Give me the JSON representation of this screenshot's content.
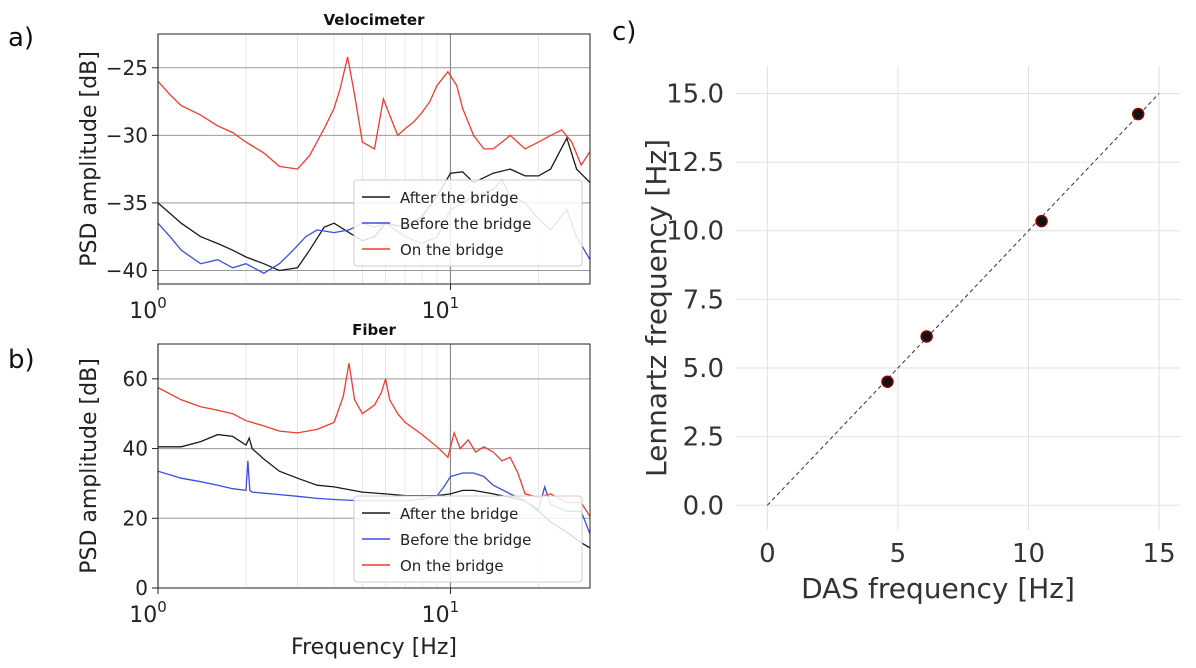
{
  "panel_labels": {
    "a": "a)",
    "b": "b)",
    "c": "c)"
  },
  "colors": {
    "after": "#1a1a1a",
    "before": "#3a4fe0",
    "on": "#f23a2e",
    "grid": "#cccccc",
    "grid_major": "#888888",
    "marker_edge": "#8b0000"
  },
  "chart_data": [
    {
      "type": "line",
      "title": "Velocimeter",
      "xlabel": "",
      "ylabel": "PSD amplitude [dB]",
      "xscale": "log",
      "xlim": [
        1,
        30
      ],
      "ylim": [
        -41,
        -22.5
      ],
      "yticks": [
        "−25",
        "−30",
        "−35",
        "−40"
      ],
      "ytick_values": [
        -25,
        -30,
        -35,
        -40
      ],
      "xticks": [
        {
          "base": "10",
          "exp": "0",
          "value": 1
        },
        {
          "base": "10",
          "exp": "1",
          "value": 10
        }
      ],
      "legend": [
        "After the bridge",
        "Before the bridge",
        "On the bridge"
      ],
      "legend_position": "lower right",
      "series": [
        {
          "name": "After the bridge",
          "x": [
            1,
            1.2,
            1.4,
            1.6,
            1.8,
            2,
            2.3,
            2.6,
            3,
            3.3,
            3.7,
            4,
            4.5,
            5,
            5.5,
            6,
            7,
            8,
            9,
            10,
            11,
            12,
            14,
            16,
            18,
            20,
            22,
            25,
            27,
            30
          ],
          "y": [
            -35,
            -36.5,
            -37.5,
            -38,
            -38.5,
            -39,
            -39.5,
            -40,
            -39.8,
            -38.5,
            -36.8,
            -36.5,
            -37.2,
            -37.8,
            -37.5,
            -36.5,
            -36.8,
            -36,
            -34.5,
            -32.8,
            -32.7,
            -33.5,
            -32.8,
            -32.5,
            -33,
            -33,
            -32.5,
            -30.2,
            -32.5,
            -33.5
          ]
        },
        {
          "name": "Before the bridge",
          "x": [
            1,
            1.1,
            1.2,
            1.4,
            1.6,
            1.8,
            2,
            2.3,
            2.6,
            2.9,
            3.2,
            3.5,
            4,
            4.5,
            5,
            5.5,
            6,
            7,
            8,
            9,
            10,
            11,
            12,
            14,
            15,
            16,
            18,
            20,
            22,
            25,
            27,
            30
          ],
          "y": [
            -36.5,
            -37.5,
            -38.5,
            -39.5,
            -39.2,
            -39.8,
            -39.5,
            -40.2,
            -39.5,
            -38.5,
            -37.5,
            -37,
            -37.2,
            -37,
            -36.5,
            -36.8,
            -36.5,
            -37.5,
            -38,
            -37.5,
            -35.5,
            -35,
            -34.5,
            -34,
            -33.3,
            -34.5,
            -35,
            -36.2,
            -37,
            -35.5,
            -37.5,
            -39.2
          ]
        },
        {
          "name": "On the bridge",
          "x": [
            1,
            1.1,
            1.2,
            1.4,
            1.6,
            1.8,
            2,
            2.3,
            2.6,
            3,
            3.3,
            3.7,
            4,
            4.2,
            4.45,
            4.7,
            5,
            5.5,
            5.9,
            6.2,
            6.6,
            7,
            7.5,
            8,
            8.5,
            9,
            9.8,
            10.5,
            11,
            12,
            13,
            14,
            15,
            16,
            18,
            20,
            22,
            24,
            26,
            28,
            30
          ],
          "y": [
            -26,
            -27,
            -27.8,
            -28.5,
            -29.3,
            -29.8,
            -30.5,
            -31.3,
            -32.3,
            -32.5,
            -31.5,
            -29.5,
            -28,
            -26.5,
            -24.2,
            -27,
            -30.5,
            -31,
            -27.3,
            -28.5,
            -30,
            -29.5,
            -29,
            -28.3,
            -27.5,
            -26.3,
            -25.3,
            -26.3,
            -28,
            -30,
            -31,
            -31,
            -30.5,
            -30,
            -31,
            -30.5,
            -30,
            -29.6,
            -30.5,
            -32.2,
            -31.2
          ]
        }
      ]
    },
    {
      "type": "line",
      "title": "Fiber",
      "xlabel": "Frequency [Hz]",
      "ylabel": "PSD amplitude [dB]",
      "xscale": "log",
      "xlim": [
        1,
        30
      ],
      "ylim": [
        0,
        70
      ],
      "yticks": [
        "0",
        "20",
        "40",
        "60"
      ],
      "ytick_values": [
        0,
        20,
        40,
        60
      ],
      "xticks": [
        {
          "base": "10",
          "exp": "0",
          "value": 1
        },
        {
          "base": "10",
          "exp": "1",
          "value": 10
        }
      ],
      "legend": [
        "After the bridge",
        "Before the bridge",
        "On the bridge"
      ],
      "legend_position": "lower right",
      "series": [
        {
          "name": "After the bridge",
          "x": [
            1,
            1.2,
            1.4,
            1.6,
            1.8,
            2,
            2.05,
            2.1,
            2.3,
            2.6,
            3,
            3.5,
            4,
            5,
            6,
            7,
            8,
            9,
            10,
            11,
            12,
            14,
            16,
            18,
            20,
            22,
            25,
            28,
            30
          ],
          "y": [
            40.5,
            40.5,
            42,
            44,
            43.5,
            41,
            43,
            40,
            37,
            33.5,
            31.5,
            29.5,
            29,
            27.5,
            27,
            26.5,
            26.5,
            26.5,
            27,
            28,
            28,
            27,
            26,
            25,
            22,
            19,
            16,
            13,
            11.5
          ]
        },
        {
          "name": "Before the bridge",
          "x": [
            1,
            1.2,
            1.4,
            1.6,
            1.8,
            2,
            2.03,
            2.06,
            2.1,
            2.3,
            2.6,
            3,
            3.5,
            4,
            5,
            6,
            7,
            8,
            9,
            9.5,
            10,
            11,
            12,
            13,
            14,
            16,
            18,
            20,
            21,
            22,
            25,
            28,
            30
          ],
          "y": [
            33.5,
            31.5,
            30.5,
            29.5,
            28.5,
            28,
            36.5,
            28,
            27.5,
            27.2,
            26.8,
            26.3,
            25.7,
            25.4,
            25,
            25,
            25,
            25.5,
            26.5,
            29,
            32,
            33,
            33,
            32,
            29.5,
            27,
            25,
            22.5,
            29,
            24,
            22,
            22,
            15.5
          ]
        },
        {
          "name": "On the bridge",
          "x": [
            1,
            1.2,
            1.4,
            1.6,
            1.8,
            2,
            2.3,
            2.6,
            3,
            3.5,
            4,
            4.3,
            4.5,
            4.7,
            5,
            5.5,
            5.8,
            6,
            6.2,
            6.6,
            7,
            8,
            9,
            9.8,
            10.3,
            10.8,
            11.5,
            12.2,
            13,
            14,
            15,
            16,
            17,
            18,
            20,
            22,
            25,
            28,
            30
          ],
          "y": [
            57.5,
            54,
            52,
            51,
            50,
            48,
            46.5,
            45,
            44.5,
            45.5,
            47.5,
            55,
            64.5,
            54,
            50,
            52.5,
            56,
            60,
            54,
            50,
            47.5,
            44,
            40.5,
            37.5,
            44.5,
            40,
            42.5,
            39,
            40.5,
            39,
            36.5,
            37.5,
            33,
            27,
            26,
            27,
            24.5,
            24.5,
            20.5
          ]
        }
      ]
    },
    {
      "type": "scatter",
      "title": "",
      "xlabel": "DAS frequency [Hz]",
      "ylabel": "Lennartz frequency [Hz]",
      "xlim": [
        -1.2,
        15.8
      ],
      "ylim": [
        -0.9,
        16
      ],
      "xticks": [
        "0",
        "5",
        "10",
        "15"
      ],
      "xtick_values": [
        0,
        5,
        10,
        15
      ],
      "yticks": [
        "0.0",
        "2.5",
        "5.0",
        "7.5",
        "10.0",
        "12.5",
        "15.0"
      ],
      "ytick_values": [
        0,
        2.5,
        5,
        7.5,
        10,
        12.5,
        15
      ],
      "grid": true,
      "reference_line": {
        "x": [
          0,
          15
        ],
        "y": [
          0,
          15
        ],
        "style": "dashed"
      },
      "points": {
        "x": [
          4.6,
          6.1,
          10.5,
          14.2
        ],
        "y": [
          4.5,
          6.15,
          10.35,
          14.25
        ]
      }
    }
  ]
}
